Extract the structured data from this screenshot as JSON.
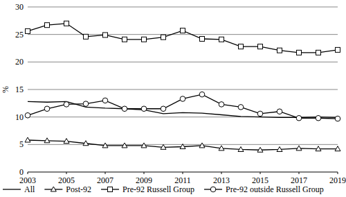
{
  "chart_data": {
    "type": "line",
    "y_label": "%",
    "x": [
      2003,
      2004,
      2005,
      2006,
      2007,
      2008,
      2009,
      2010,
      2011,
      2012,
      2013,
      2014,
      2015,
      2016,
      2017,
      2018,
      2019
    ],
    "xlim": [
      2003,
      2019
    ],
    "xticks": [
      2003,
      2005,
      2007,
      2009,
      2011,
      2013,
      2015,
      2017,
      2019
    ],
    "ylim": [
      0,
      30
    ],
    "yticks": [
      0,
      5,
      10,
      15,
      20,
      25,
      30
    ],
    "grid": true,
    "legend": "bottom",
    "series": [
      {
        "name": "All",
        "color": "#000000",
        "line_style": "solid",
        "values": [
          12.8,
          12.7,
          12.8,
          11.8,
          11.6,
          11.5,
          11.3,
          10.6,
          10.8,
          10.7,
          10.4,
          10.1,
          10.0,
          9.9,
          9.9,
          10.0,
          9.9
        ]
      },
      {
        "name": "Post-92",
        "color": "#000000",
        "line_style": "solid",
        "marker": "triangle",
        "values": [
          5.8,
          5.7,
          5.6,
          5.2,
          4.8,
          4.8,
          4.8,
          4.5,
          4.6,
          4.8,
          4.3,
          4.1,
          4.0,
          4.1,
          4.3,
          4.2,
          4.2
        ]
      },
      {
        "name": "Pre-92 Russell Group",
        "color": "#000000",
        "line_style": "solid",
        "marker": "square",
        "values": [
          25.6,
          26.7,
          27.0,
          24.6,
          24.9,
          24.1,
          24.1,
          24.5,
          25.7,
          24.2,
          24.1,
          22.8,
          22.8,
          22.1,
          21.7,
          21.7,
          22.2
        ]
      },
      {
        "name": "Pre-92 outside Russell Group",
        "color": "#000000",
        "line_style": "solid",
        "marker": "circle",
        "values": [
          10.3,
          11.5,
          12.3,
          12.4,
          13.0,
          11.5,
          11.5,
          11.5,
          13.3,
          14.1,
          12.3,
          11.8,
          10.6,
          11.0,
          9.8,
          9.8,
          9.7
        ]
      }
    ]
  }
}
